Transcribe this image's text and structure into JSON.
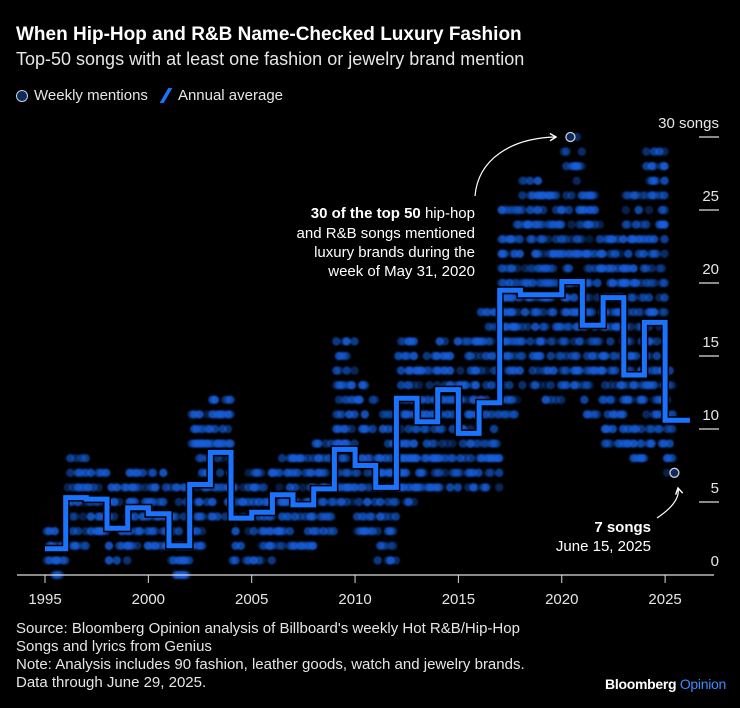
{
  "title": "When Hip-Hop and R&B Name-Checked Luxury Fashion",
  "subtitle": "Top-50 songs with at least one fashion or jewelry brand mention",
  "legend": {
    "weekly": "Weekly mentions",
    "annual": "Annual average"
  },
  "footer": {
    "lines": [
      "Source: Bloomberg Opinion analysis of Billboard's weekly Hot R&B/Hip-Hop",
      "Songs and lyrics from Genius",
      "Note: Analysis includes 90 fashion, leather goods, watch and jewelry brands.",
      "Data through June 29, 2025."
    ]
  },
  "logo": {
    "brand": "Bloomberg",
    "product": "Opinion"
  },
  "colors": {
    "annual_line": "#1a73ff",
    "dots": "#1560e0",
    "background": "#000000"
  },
  "chart_data": {
    "type": "scatter+step-line",
    "x_ticks": [
      "1995",
      "2000",
      "2005",
      "2010",
      "2015",
      "2020",
      "2025"
    ],
    "y_ticks": [
      "0",
      "5",
      "10",
      "15",
      "20",
      "25",
      "30 songs"
    ],
    "ylim": [
      0,
      30
    ],
    "xlim": [
      1994.7,
      2027
    ],
    "grid": false,
    "legend_placement": "top-left",
    "annual_average": {
      "name": "Annual average",
      "years": [
        1995,
        1996,
        1997,
        1998,
        1999,
        2000,
        2001,
        2002,
        2003,
        2004,
        2005,
        2006,
        2007,
        2008,
        2009,
        2010,
        2011,
        2012,
        2013,
        2014,
        2015,
        2016,
        2017,
        2018,
        2019,
        2020,
        2021,
        2022,
        2023,
        2024,
        2025
      ],
      "values": [
        1.8,
        5.3,
        5.2,
        3.2,
        4.6,
        4.2,
        2.0,
        6.2,
        8.4,
        3.9,
        4.3,
        5.5,
        4.8,
        5.9,
        8.6,
        7.5,
        6.0,
        12.1,
        10.5,
        12.7,
        9.7,
        11.8,
        19.5,
        19.2,
        19.2,
        20.1,
        17.1,
        19.0,
        13.7,
        17.3,
        10.6
      ]
    },
    "weekly_mentions_range": {
      "name": "Weekly mentions",
      "years": [
        1995,
        1996,
        1997,
        1998,
        1999,
        2000,
        2001,
        2002,
        2003,
        2004,
        2005,
        2006,
        2007,
        2008,
        2009,
        2010,
        2011,
        2012,
        2013,
        2014,
        2015,
        2016,
        2017,
        2018,
        2019,
        2020,
        2021,
        2022,
        2023,
        2024,
        2025
      ],
      "min": [
        0,
        2,
        3,
        1,
        2,
        2,
        0,
        2,
        4,
        1,
        1,
        2,
        2,
        3,
        5,
        3,
        1,
        5,
        6,
        6,
        6,
        6,
        11,
        13,
        12,
        13,
        11,
        9,
        8,
        9,
        7
      ],
      "max": [
        3,
        8,
        7,
        6,
        7,
        7,
        6,
        11,
        12,
        7,
        7,
        8,
        8,
        9,
        16,
        13,
        11,
        16,
        15,
        16,
        16,
        18,
        25,
        27,
        26,
        30,
        26,
        23,
        26,
        29,
        14
      ]
    },
    "annotations": [
      {
        "bold": "30 of the top 50",
        "text": [
          " hip-hop",
          "and R&B songs mentioned",
          "luxury brands during the",
          "week of May 31, 2020"
        ],
        "x": 2020.42,
        "y": 30
      },
      {
        "bold": "7 songs",
        "text": [
          "June 15, 2025"
        ],
        "x": 2025.45,
        "y": 7
      }
    ]
  }
}
